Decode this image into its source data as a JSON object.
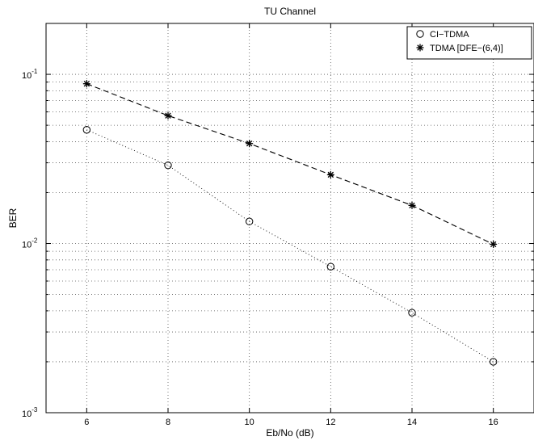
{
  "chart_data": {
    "type": "line",
    "title": "TU Channel",
    "xlabel": "Eb/No (dB)",
    "ylabel": "BER",
    "x": [
      6,
      8,
      10,
      12,
      14,
      16
    ],
    "xlim": [
      5,
      17
    ],
    "ylim": [
      0.001,
      0.2
    ],
    "yscale": "log",
    "grid": true,
    "legend_position": "top-right",
    "x_ticks": [
      "6",
      "8",
      "10",
      "12",
      "14",
      "16"
    ],
    "y_ticks": [
      {
        "base": "10",
        "exp": "-3"
      },
      {
        "base": "10",
        "exp": "-2"
      },
      {
        "base": "10",
        "exp": "-1"
      }
    ],
    "series": [
      {
        "name": "CI−TDMA",
        "marker": "circle",
        "line": "dotted",
        "values": [
          0.047,
          0.029,
          0.0135,
          0.0073,
          0.0039,
          0.002
        ]
      },
      {
        "name": "TDMA [DFE−(6,4)]",
        "marker": "star",
        "line": "dashed",
        "values": [
          0.088,
          0.057,
          0.039,
          0.0255,
          0.0168,
          0.0099
        ]
      }
    ]
  }
}
